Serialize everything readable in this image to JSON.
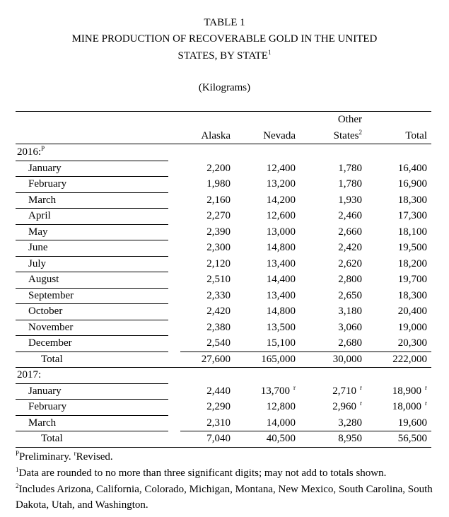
{
  "header": {
    "table_number": "TABLE 1",
    "title_line1": "MINE PRODUCTION OF RECOVERABLE GOLD IN THE UNITED",
    "title_line2": "STATES, BY STATE",
    "title_note": "1",
    "unit": "(Kilograms)"
  },
  "table": {
    "columns": [
      {
        "label": "Alaska"
      },
      {
        "label": "Nevada"
      },
      {
        "label": "Other",
        "label2": "States",
        "note": "2"
      },
      {
        "label": "Total"
      }
    ],
    "sections": [
      {
        "label": "2016:",
        "note": "P",
        "rows": [
          [
            "January",
            "2,200",
            "12,400",
            "1,780",
            "16,400"
          ],
          [
            "February",
            "1,980",
            "13,200",
            "1,780",
            "16,900"
          ],
          [
            "March",
            "2,160",
            "14,200",
            "1,930",
            "18,300"
          ],
          [
            "April",
            "2,270",
            "12,600",
            "2,460",
            "17,300"
          ],
          [
            "May",
            "2,390",
            "13,000",
            "2,660",
            "18,100"
          ],
          [
            "June",
            "2,300",
            "14,800",
            "2,420",
            "19,500"
          ],
          [
            "July",
            "2,120",
            "13,400",
            "2,620",
            "18,200"
          ],
          [
            "August",
            "2,510",
            "14,400",
            "2,800",
            "19,700"
          ],
          [
            "September",
            "2,330",
            "13,400",
            "2,650",
            "18,300"
          ],
          [
            "October",
            "2,420",
            "14,800",
            "3,180",
            "20,400"
          ],
          [
            "November",
            "2,380",
            "13,500",
            "3,060",
            "19,000"
          ],
          [
            "December",
            "2,540",
            "15,100",
            "2,680",
            "20,300"
          ]
        ],
        "total": [
          "Total",
          "27,600",
          "165,000",
          "30,000",
          "222,000"
        ]
      },
      {
        "label": "2017:",
        "rows": [
          [
            "January",
            "2,440",
            {
              "text": "13,700",
              "note": "r"
            },
            {
              "text": "2,710",
              "note": "r"
            },
            {
              "text": "18,900",
              "note": "r"
            }
          ],
          [
            "February",
            "2,290",
            "12,800",
            {
              "text": "2,960",
              "note": "r"
            },
            {
              "text": "18,000",
              "note": "r"
            }
          ],
          [
            "March",
            "2,310",
            "14,000",
            "3,280",
            "19,600"
          ]
        ],
        "total": [
          "Total",
          "7,040",
          "40,500",
          "8,950",
          "56,500"
        ]
      }
    ]
  },
  "footnotes": [
    [
      {
        "sup": "P"
      },
      {
        "text": "Preliminary."
      },
      {
        "sup": "r"
      },
      {
        "text": "Revised."
      }
    ],
    [
      {
        "sup": "1"
      },
      {
        "text": "Data are rounded to no more than three significant digits; may not add to totals shown."
      }
    ],
    [
      {
        "sup": "2"
      },
      {
        "text": "Includes Arizona, California, Colorado, Michigan, Montana, New Mexico, South Carolina, South Dakota, Utah, and Washington."
      }
    ]
  ]
}
